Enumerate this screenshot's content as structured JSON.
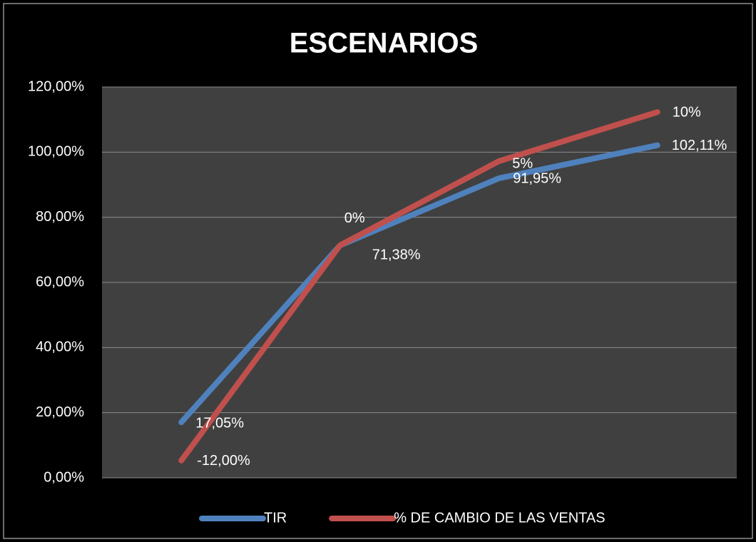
{
  "chart_data": {
    "type": "line",
    "title": "ESCENARIOS",
    "categories": [
      "-12,00%",
      "0%",
      "5%",
      "10%"
    ],
    "series": [
      {
        "name": "TIR",
        "color": "#4f81bd",
        "values": [
          17.05,
          71.38,
          91.95,
          102.11
        ],
        "value_labels": [
          "17,05%",
          "71,38%",
          "91,95%",
          "102,11%"
        ]
      },
      {
        "name": "% DE CAMBIO DE LAS VENTAS",
        "color": "#c0504d",
        "values": [
          5.3,
          71.4,
          97.2,
          112.3
        ]
      }
    ],
    "ylim": [
      0,
      120
    ],
    "yticks": [
      {
        "value": 0,
        "label": "0,00%"
      },
      {
        "value": 20,
        "label": "20,00%"
      },
      {
        "value": 40,
        "label": "40,00%"
      },
      {
        "value": 60,
        "label": "60,00%"
      },
      {
        "value": 80,
        "label": "80,00%"
      },
      {
        "value": 100,
        "label": "100,00%"
      },
      {
        "value": 120,
        "label": "120,00%"
      }
    ],
    "grid": true,
    "legend": "bottom"
  }
}
